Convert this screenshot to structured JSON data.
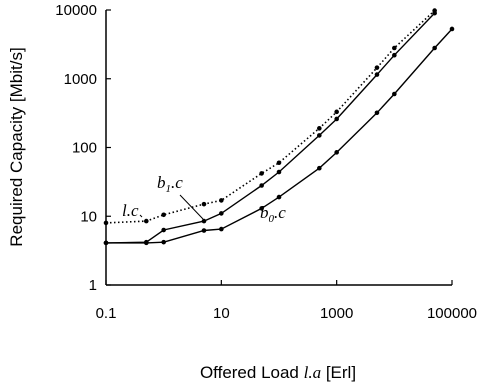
{
  "chart_data": {
    "type": "line",
    "xscale": "log",
    "yscale": "log",
    "xlim": [
      0.1,
      100000
    ],
    "ylim": [
      1,
      10000
    ],
    "xticks": [
      0.1,
      10,
      1000,
      100000
    ],
    "xtick_labels": [
      "0.1",
      "10",
      "1000",
      "100000"
    ],
    "yticks": [
      1,
      10,
      100,
      1000,
      10000
    ],
    "ytick_labels": [
      "1",
      "10",
      "100",
      "1000",
      "10000"
    ],
    "xlabel_parts": {
      "pre": "Offered Load ",
      "var": "l.a",
      "post": " [Erl]"
    },
    "ylabel": "Required Capacity [Mbit/s]",
    "grid": false,
    "legend": "none",
    "series": [
      {
        "label_main": "l.c",
        "label_sub": "",
        "label_suffix": "",
        "style": "dotted",
        "x": [
          0.1,
          0.5,
          1,
          5,
          10,
          50,
          100,
          500,
          1000,
          5000,
          10000,
          50000
        ],
        "y": [
          8,
          8.5,
          10.5,
          15,
          17,
          42,
          60,
          190,
          330,
          1450,
          2800,
          9800
        ]
      },
      {
        "label_main": "b",
        "label_sub": "1",
        "label_suffix": ".c",
        "style": "solid",
        "x": [
          0.1,
          0.5,
          1,
          5,
          10,
          50,
          100,
          500,
          1000,
          5000,
          10000,
          50000
        ],
        "y": [
          4.1,
          4.2,
          6.3,
          8.5,
          11,
          28,
          44,
          150,
          260,
          1150,
          2200,
          9000
        ]
      },
      {
        "label_main": "b",
        "label_sub": "0",
        "label_suffix": ".c",
        "style": "solid",
        "x": [
          0.1,
          0.5,
          1,
          5,
          10,
          50,
          100,
          500,
          1000,
          5000,
          10000,
          50000,
          100000
        ],
        "y": [
          4.1,
          4.1,
          4.2,
          6.2,
          6.5,
          13,
          19,
          50,
          85,
          320,
          600,
          2800,
          5300
        ]
      }
    ]
  }
}
